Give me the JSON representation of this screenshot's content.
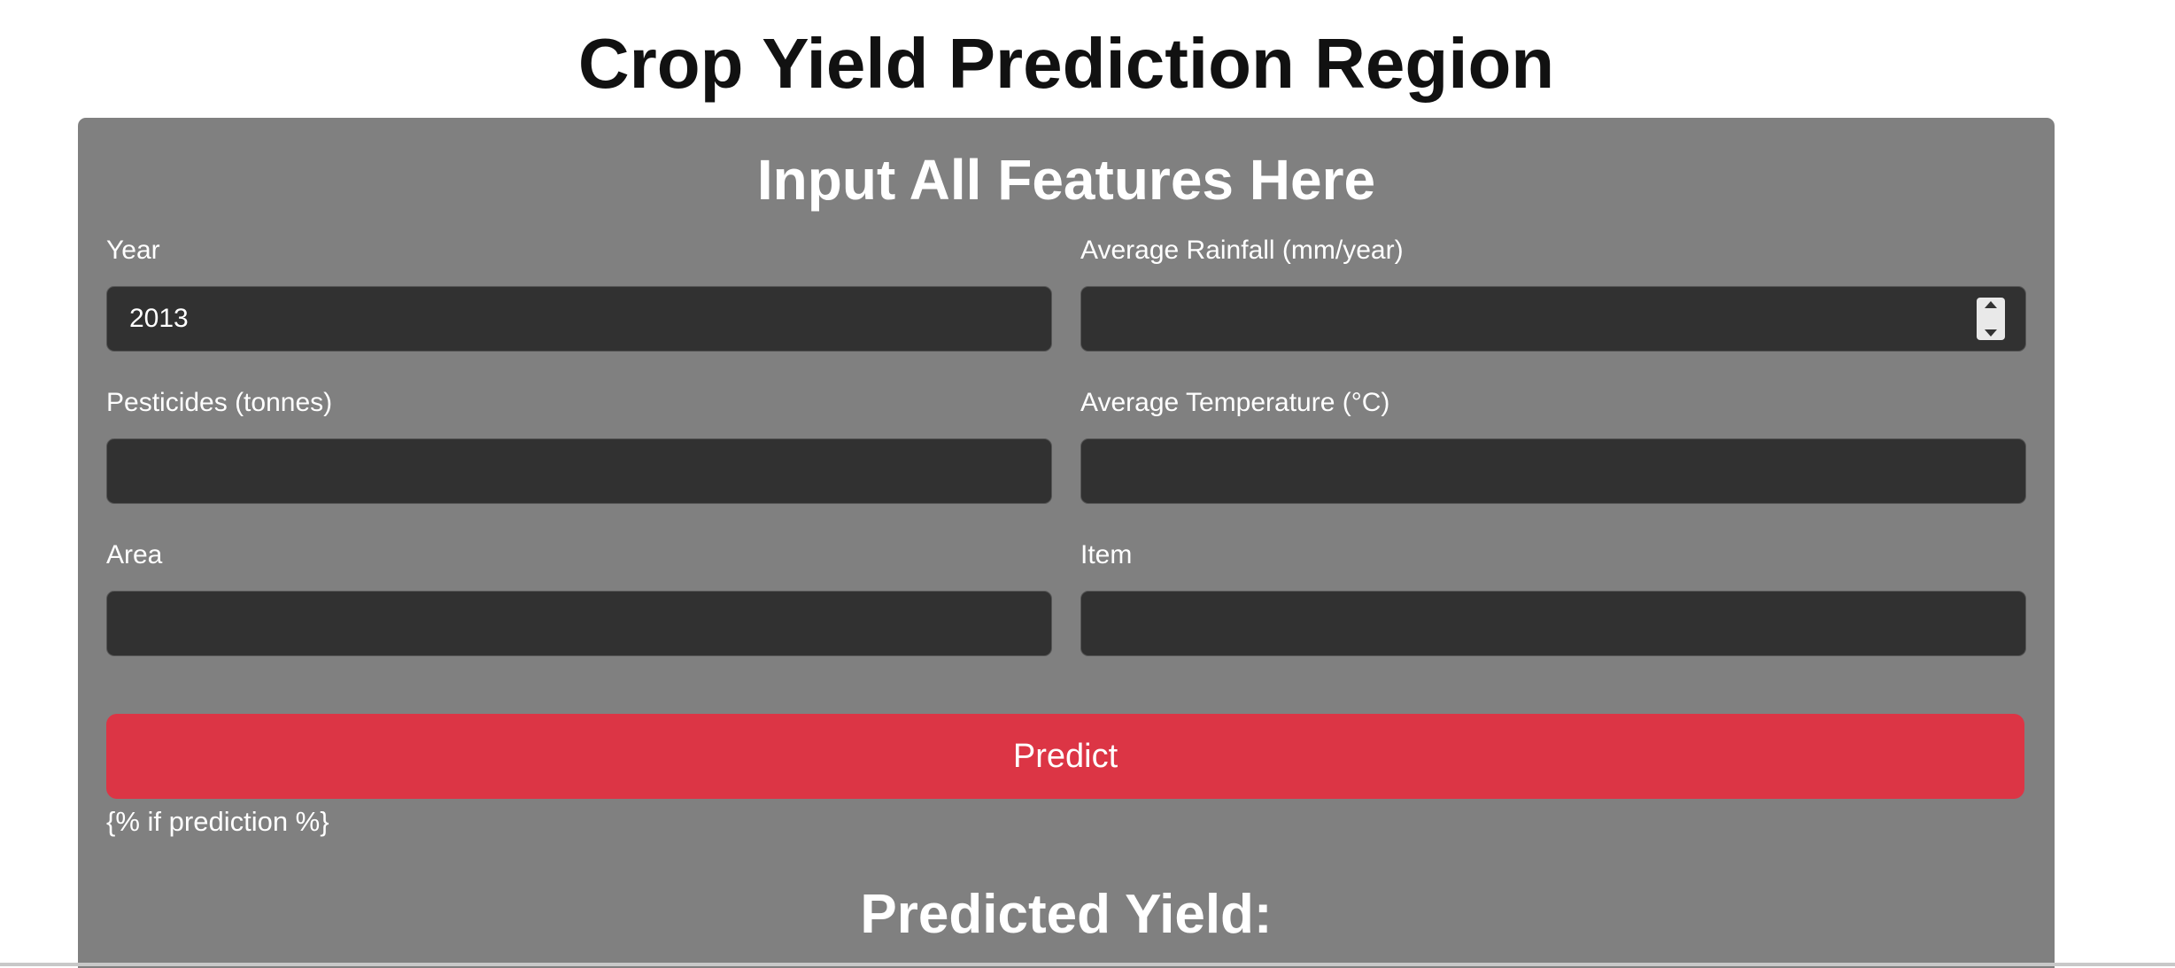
{
  "page": {
    "title": "Crop Yield Prediction Region"
  },
  "form": {
    "heading": "Input All Features Here",
    "fields": {
      "year": {
        "label": "Year",
        "value": "2013",
        "placeholder": ""
      },
      "rainfall": {
        "label": "Average Rainfall (mm/year)",
        "value": "",
        "placeholder": ""
      },
      "pesticides": {
        "label": "Pesticides (tonnes)",
        "value": "",
        "placeholder": ""
      },
      "temperature": {
        "label": "Average Temperature (°C)",
        "value": "",
        "placeholder": ""
      },
      "area": {
        "label": "Area",
        "value": "",
        "placeholder": ""
      },
      "item": {
        "label": "Item",
        "value": "",
        "placeholder": ""
      }
    },
    "submit_label": "Predict",
    "template_text": "{% if prediction %}"
  },
  "result": {
    "heading": "Predicted Yield:"
  },
  "colors": {
    "page_background": "#ffffff",
    "card_background": "#808080",
    "input_background": "#313131",
    "button_background": "#dc3545",
    "text_light": "#ffffff",
    "text_dark": "#111111"
  },
  "icons": {
    "rainfall_spinner": "number-spinner-icon"
  }
}
